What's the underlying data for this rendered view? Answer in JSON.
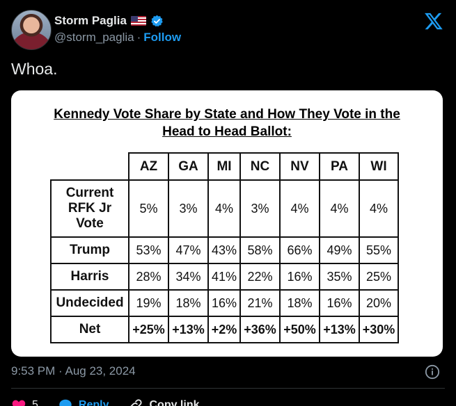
{
  "author": {
    "display_name": "Storm Paglia",
    "handle": "@storm_paglia",
    "separator": "·",
    "follow_label": "Follow"
  },
  "tweet": {
    "text": "Whoa."
  },
  "image": {
    "title_line1": "Kennedy Vote Share by State and How They Vote in the",
    "title_line2": "Head to Head Ballot:",
    "states": [
      "AZ",
      "GA",
      "MI",
      "NC",
      "NV",
      "PA",
      "WI"
    ],
    "rows": [
      {
        "label_lines": [
          "Current",
          "RFK Jr",
          "Vote"
        ],
        "values": [
          "5%",
          "3%",
          "4%",
          "3%",
          "4%",
          "4%",
          "4%"
        ]
      },
      {
        "label": "Trump",
        "values": [
          "53%",
          "47%",
          "43%",
          "58%",
          "66%",
          "49%",
          "55%"
        ]
      },
      {
        "label": "Harris",
        "values": [
          "28%",
          "34%",
          "41%",
          "22%",
          "16%",
          "35%",
          "25%"
        ]
      },
      {
        "label": "Undecided",
        "values": [
          "19%",
          "18%",
          "16%",
          "21%",
          "18%",
          "16%",
          "20%"
        ]
      },
      {
        "label": "Net",
        "values": [
          "+25%",
          "+13%",
          "+2%",
          "+36%",
          "+50%",
          "+13%",
          "+30%"
        ]
      }
    ]
  },
  "meta": {
    "timestamp": "9:53 PM · Aug 23, 2024"
  },
  "actions": {
    "like_count": "5",
    "reply_label": "Reply",
    "copy_link_label": "Copy link"
  },
  "colors": {
    "background": "#000000",
    "accent": "#1d9bf0",
    "like": "#f91880",
    "muted": "#8b98a5",
    "text": "#e7e9ea"
  },
  "icons": {
    "flag": "us-flag-icon",
    "verified": "verified-badge-icon",
    "brand": "x-logo-icon",
    "info": "info-icon",
    "like": "heart-icon",
    "reply": "reply-bubble-icon",
    "copy": "link-icon"
  }
}
